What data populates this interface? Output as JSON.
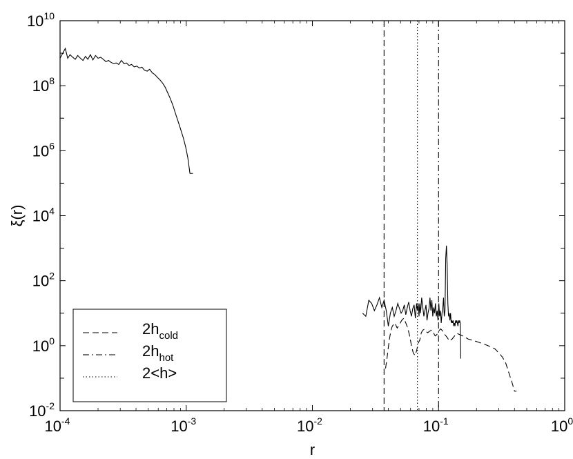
{
  "chart_data": {
    "type": "line",
    "xlabel": "r",
    "ylabel": "ξ(r)",
    "xscale": "log",
    "yscale": "log",
    "xlim": [
      0.0001,
      1
    ],
    "ylim": [
      0.01,
      10000000000
    ],
    "x_ticks": [
      {
        "value": 0.0001,
        "base": "10",
        "exp": "-4"
      },
      {
        "value": 0.001,
        "base": "10",
        "exp": "-3"
      },
      {
        "value": 0.01,
        "base": "10",
        "exp": "-2"
      },
      {
        "value": 0.1,
        "base": "10",
        "exp": "-1"
      },
      {
        "value": 1,
        "base": "10",
        "exp": "0"
      }
    ],
    "y_ticks": [
      {
        "value": 0.01,
        "base": "10",
        "exp": "-2"
      },
      {
        "value": 1,
        "base": "10",
        "exp": "0"
      },
      {
        "value": 100,
        "base": "10",
        "exp": "2"
      },
      {
        "value": 10000,
        "base": "10",
        "exp": "4"
      },
      {
        "value": 1000000,
        "base": "10",
        "exp": "6"
      },
      {
        "value": 100000000,
        "base": "10",
        "exp": "8"
      },
      {
        "value": 10000000000,
        "base": "10",
        "exp": "10"
      }
    ],
    "grid": false,
    "legend_position": "bottom-left",
    "series": [
      {
        "style": "solid",
        "x": [
          0.0001,
          0.000105,
          0.00011,
          0.000115,
          0.00012,
          0.000126,
          0.000132,
          0.000138,
          0.000145,
          0.000152,
          0.000159,
          0.000166,
          0.000174,
          0.000182,
          0.000191,
          0.0002,
          0.00021,
          0.00022,
          0.000231,
          0.000242,
          0.000254,
          0.000266,
          0.000279,
          0.000292,
          0.000306,
          0.000321,
          0.000336,
          0.000352,
          0.000369,
          0.000387,
          0.000406,
          0.000425,
          0.000446,
          0.000467,
          0.00049,
          0.000513,
          0.000538,
          0.000564,
          0.000591,
          0.00062,
          0.00065,
          0.000681,
          0.000714,
          0.000748,
          0.000784,
          0.000822,
          0.000862,
          0.000904,
          0.000948,
          0.00099,
          0.00103,
          0.00107,
          0.0011,
          0.00113
        ],
        "y": [
          700000000,
          1000000000,
          1400000000,
          700000000,
          900000000,
          750000000,
          650000000,
          850000000,
          700000000,
          600000000,
          800000000,
          650000000,
          900000000,
          620000000,
          850000000,
          700000000,
          750000000,
          650000000,
          550000000,
          600000000,
          520000000,
          480000000,
          500000000,
          450000000,
          600000000,
          480000000,
          500000000,
          420000000,
          450000000,
          380000000,
          400000000,
          350000000,
          370000000,
          300000000,
          280000000,
          320000000,
          250000000,
          220000000,
          180000000,
          150000000,
          120000000,
          90000000,
          60000000,
          40000000,
          25000000,
          14000000,
          8000000,
          4500000,
          2500000,
          1300000,
          600000,
          200000,
          200000,
          200000
        ]
      },
      {
        "style": "solid",
        "x": [
          0.025,
          0.0265,
          0.028,
          0.0295,
          0.031,
          0.0325,
          0.034,
          0.0355,
          0.037,
          0.0385,
          0.04,
          0.0415,
          0.043,
          0.0445,
          0.046,
          0.0475,
          0.049,
          0.0505,
          0.052,
          0.0535,
          0.055,
          0.0565,
          0.058,
          0.0595,
          0.061,
          0.0625,
          0.064,
          0.0655,
          0.067,
          0.068,
          0.069,
          0.07,
          0.071,
          0.072,
          0.0735,
          0.075,
          0.0765,
          0.078,
          0.0795,
          0.081,
          0.0825,
          0.084,
          0.0855,
          0.087,
          0.0885,
          0.09,
          0.0915,
          0.093,
          0.0945,
          0.096,
          0.0975,
          0.099,
          0.1005,
          0.102,
          0.1035,
          0.105,
          0.1065,
          0.108,
          0.1095,
          0.111,
          0.1125,
          0.114,
          0.1155,
          0.117,
          0.1185,
          0.12,
          0.1215,
          0.123,
          0.1245,
          0.126,
          0.1275,
          0.129,
          0.1305,
          0.132,
          0.1335,
          0.135,
          0.1365,
          0.138,
          0.1395,
          0.141,
          0.1425,
          0.144,
          0.1455,
          0.147,
          0.1485,
          0.15
        ],
        "y": [
          10,
          8,
          25,
          20,
          12,
          18,
          30,
          15,
          25,
          12,
          4,
          10,
          15,
          8,
          12,
          20,
          14,
          10,
          12,
          18,
          9,
          15,
          22,
          12,
          8,
          14,
          18,
          7,
          20,
          12,
          20,
          8,
          20,
          10,
          30,
          15,
          8,
          12,
          18,
          6,
          10,
          14,
          30,
          12,
          25,
          8,
          15,
          10,
          20,
          8,
          12,
          6,
          20,
          8,
          12,
          5,
          10,
          14,
          30,
          8,
          12,
          500,
          1200,
          300,
          20,
          8,
          10,
          6,
          10,
          5,
          6,
          5,
          6,
          4,
          5,
          4,
          6,
          5,
          6,
          5,
          4,
          6,
          5,
          6,
          5,
          0.4
        ]
      },
      {
        "style": "dashed",
        "x": [
          0.038,
          0.039,
          0.04,
          0.041,
          0.042,
          0.043,
          0.045,
          0.047,
          0.049,
          0.051,
          0.053,
          0.055,
          0.057,
          0.059,
          0.061,
          0.063,
          0.065,
          0.067,
          0.069,
          0.071,
          0.073,
          0.075,
          0.077,
          0.079,
          0.082,
          0.085,
          0.088,
          0.091,
          0.094,
          0.097,
          0.1,
          0.104,
          0.108,
          0.112,
          0.117,
          0.122,
          0.128,
          0.134,
          0.14,
          0.147,
          0.155,
          0.163,
          0.172,
          0.182,
          0.193,
          0.205,
          0.218,
          0.232,
          0.247,
          0.263,
          0.28,
          0.3,
          0.32,
          0.34,
          0.36,
          0.38,
          0.4,
          0.415
        ],
        "y": [
          0.2,
          0.4,
          0.9,
          1.8,
          3,
          4,
          5,
          3.5,
          4.5,
          6,
          7,
          5,
          3.5,
          2,
          1,
          0.6,
          0.5,
          0.7,
          1.2,
          1.5,
          2.5,
          3,
          3.2,
          2.8,
          2.5,
          2.8,
          3,
          2.5,
          2,
          2.2,
          2.8,
          3.3,
          2.8,
          2.2,
          1.8,
          1.4,
          1.6,
          2,
          2.4,
          2.2,
          2,
          1.8,
          1.6,
          1.5,
          1.4,
          1.3,
          1.2,
          1.1,
          1,
          0.9,
          0.8,
          0.6,
          0.45,
          0.3,
          0.15,
          0.08,
          0.04,
          0.04
        ]
      }
    ],
    "reference_lines": [
      {
        "style": "dashed",
        "x": 0.037
      },
      {
        "style": "dotted",
        "x": 0.068
      },
      {
        "style": "dashdot",
        "x": 0.1
      }
    ],
    "legend": {
      "entries": [
        {
          "style": "dashed",
          "label_main": "2h",
          "label_sub": "cold"
        },
        {
          "style": "dashdot",
          "label_main": "2h",
          "label_sub": "hot"
        },
        {
          "style": "dotted",
          "label_main": "2<h>",
          "label_sub": ""
        }
      ]
    }
  }
}
